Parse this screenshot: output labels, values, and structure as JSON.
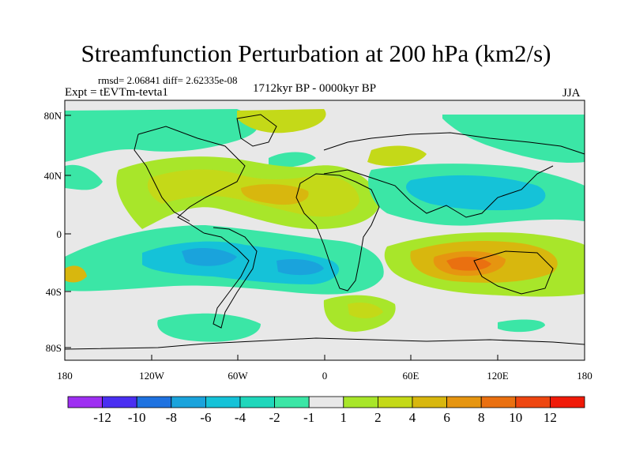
{
  "title": "Streamfunction Perturbation at 200 hPa (km2/s)",
  "stats": "rmsd= 2.06841 diff= 2.62335e-08",
  "experiment": "Expt = tEVTm-tevta1",
  "period": "1712kyr BP - 0000kyr BP",
  "season": "JJA",
  "colors": {
    "neutral": "#e8e8e8",
    "n12": "#9e2ff2",
    "n10": "#4a2ff2",
    "n8": "#1e72e0",
    "n6": "#1aa3dc",
    "n4": "#15c2d8",
    "n2": "#1fd7bb",
    "n1": "#3be6a6",
    "p1": "#a8e62a",
    "p2": "#c4d918",
    "p4": "#d8b70e",
    "p6": "#e69510",
    "p8": "#ea7010",
    "p10": "#ee4610",
    "p12": "#f01a08"
  },
  "map": {
    "lat_labels": [
      "80N",
      "40N",
      "0",
      "40S",
      "80S"
    ],
    "lon_labels": [
      "180",
      "120W",
      "60W",
      "0",
      "60E",
      "120E",
      "180"
    ]
  },
  "colorbar": {
    "labels": [
      "-12",
      "-10",
      "-8",
      "-6",
      "-4",
      "-2",
      "-1",
      "1",
      "2",
      "4",
      "6",
      "8",
      "10",
      "12"
    ],
    "colors": [
      "#9e2ff2",
      "#4a2ff2",
      "#1e72e0",
      "#1aa3dc",
      "#15c2d8",
      "#1fd7bb",
      "#3be6a6",
      "#e8e8e8",
      "#a8e62a",
      "#c4d918",
      "#d8b70e",
      "#e69510",
      "#ea7010",
      "#ee4610",
      "#f01a08"
    ]
  }
}
